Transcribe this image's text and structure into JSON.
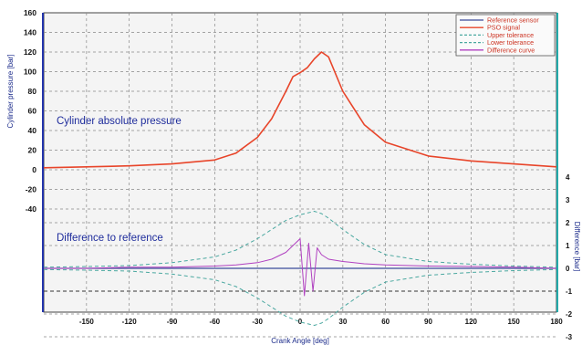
{
  "chart_data": {
    "type": "line",
    "xlabel": "Crank Angle [deg]",
    "ylabel_left": "Cylinder pressure [bar]",
    "ylabel_right": "Difference [bar]",
    "xlim": [
      -180,
      180
    ],
    "xticks": [
      -150,
      -120,
      -90,
      -60,
      -30,
      0,
      30,
      60,
      90,
      120,
      150,
      180
    ],
    "ylim_left": [
      -45,
      160
    ],
    "yticks_left": [
      -40,
      -20,
      0,
      20,
      40,
      60,
      80,
      100,
      120,
      140,
      160
    ],
    "ylim_right": [
      -3,
      4.9
    ],
    "yticks_right": [
      -3,
      -2,
      -1,
      0,
      1,
      2,
      3,
      4
    ],
    "grid": true,
    "legend_position": "top-right",
    "legend": [
      {
        "label": "Reference sensor",
        "color": "#3a4a9a",
        "dash": "solid"
      },
      {
        "label": "PSO signal",
        "color": "#e8452a",
        "dash": "solid"
      },
      {
        "label": "Upper tolerance",
        "color": "#4aa8a0",
        "dash": "dashed"
      },
      {
        "label": "Lower tolerance",
        "color": "#4aa8a0",
        "dash": "dashed"
      },
      {
        "label": "Difference curve",
        "color": "#b040c0",
        "dash": "solid"
      }
    ],
    "annotations": [
      {
        "text": "Cylinder absolute pressure"
      },
      {
        "text": "Difference to reference"
      }
    ],
    "series": [
      {
        "name": "PSO signal",
        "axis": "left",
        "x": [
          -180,
          -150,
          -120,
          -90,
          -60,
          -45,
          -30,
          -20,
          -10,
          -5,
          0,
          5,
          10,
          15,
          20,
          30,
          45,
          60,
          90,
          120,
          150,
          180
        ],
        "y": [
          2,
          3,
          4,
          6,
          10,
          17,
          33,
          52,
          80,
          95,
          99,
          104,
          113,
          120,
          115,
          80,
          46,
          28,
          14,
          9,
          6,
          3
        ]
      },
      {
        "name": "Upper tolerance",
        "axis": "right",
        "x": [
          -180,
          -150,
          -120,
          -90,
          -60,
          -45,
          -30,
          -20,
          -10,
          0,
          10,
          15,
          20,
          30,
          45,
          60,
          90,
          120,
          150,
          180
        ],
        "y": [
          0.05,
          0.08,
          0.12,
          0.25,
          0.5,
          0.8,
          1.3,
          1.7,
          2.1,
          2.35,
          2.5,
          2.4,
          2.2,
          1.7,
          1.05,
          0.6,
          0.3,
          0.18,
          0.1,
          0.05
        ]
      },
      {
        "name": "Lower tolerance",
        "axis": "right",
        "x": [
          -180,
          -150,
          -120,
          -90,
          -60,
          -45,
          -30,
          -20,
          -10,
          0,
          10,
          15,
          20,
          30,
          45,
          60,
          90,
          120,
          150,
          180
        ],
        "y": [
          -0.05,
          -0.08,
          -0.12,
          -0.25,
          -0.5,
          -0.8,
          -1.3,
          -1.7,
          -2.1,
          -2.35,
          -2.5,
          -2.4,
          -2.2,
          -1.7,
          -1.05,
          -0.6,
          -0.3,
          -0.18,
          -0.1,
          -0.05
        ]
      },
      {
        "name": "Difference curve",
        "axis": "right",
        "x": [
          -180,
          -150,
          -120,
          -90,
          -60,
          -45,
          -30,
          -20,
          -10,
          -5,
          0,
          3,
          6,
          9,
          12,
          15,
          20,
          30,
          45,
          60,
          90,
          120,
          150,
          180
        ],
        "y": [
          0.0,
          0.0,
          0.05,
          0.05,
          0.1,
          0.15,
          0.25,
          0.4,
          0.7,
          1.0,
          1.3,
          -1.2,
          1.1,
          -1.0,
          0.9,
          0.6,
          0.4,
          0.3,
          0.2,
          0.15,
          0.1,
          0.08,
          0.05,
          0.0
        ]
      }
    ]
  }
}
